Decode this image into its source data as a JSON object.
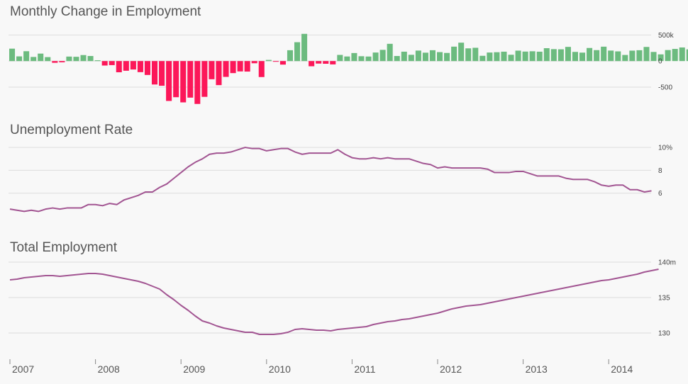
{
  "chart_data": [
    {
      "type": "bar",
      "title": "Monthly Change in Employment",
      "x_start": "2007-01",
      "y_ticks": [
        500,
        0,
        -500
      ],
      "y_tick_labels": [
        "500k",
        "0",
        "-500"
      ],
      "ylim": [
        -800,
        560
      ],
      "positive_color": "#6cbb7f",
      "negative_color": "#fc1759",
      "values": [
        238,
        90,
        189,
        79,
        143,
        76,
        -33,
        -24,
        86,
        82,
        115,
        97,
        15,
        -86,
        -78,
        -215,
        -186,
        -162,
        -213,
        -267,
        -450,
        -474,
        -766,
        -694,
        -793,
        -702,
        -823,
        -687,
        -349,
        -462,
        -304,
        -231,
        -199,
        -202,
        -42,
        -307,
        22,
        -1,
        -68,
        208,
        362,
        522,
        -100,
        -48,
        -52,
        -64,
        118,
        88,
        154,
        93,
        87,
        164,
        215,
        331,
        97,
        180,
        120,
        201,
        161,
        208,
        172,
        156,
        277,
        353,
        244,
        255,
        101,
        164,
        170,
        180,
        121,
        200,
        182,
        188,
        180,
        247,
        229,
        226,
        272,
        176,
        162,
        251,
        210,
        276,
        201,
        186,
        117,
        200,
        208,
        271,
        175,
        128,
        211,
        233,
        261,
        225,
        177,
        198,
        277,
        226,
        220,
        302,
        304,
        217
      ]
    },
    {
      "type": "line",
      "title": "Unemployment Rate",
      "x_start": "2007-01",
      "y_ticks": [
        10,
        8,
        6
      ],
      "y_tick_labels": [
        "10%",
        "8",
        "6"
      ],
      "ylim": [
        4.3,
        10.5
      ],
      "color": "#a25592",
      "values": [
        4.6,
        4.5,
        4.4,
        4.5,
        4.4,
        4.6,
        4.7,
        4.6,
        4.7,
        4.7,
        4.7,
        5.0,
        5.0,
        4.9,
        5.1,
        5.0,
        5.4,
        5.6,
        5.8,
        6.1,
        6.1,
        6.5,
        6.8,
        7.3,
        7.8,
        8.3,
        8.7,
        9.0,
        9.4,
        9.5,
        9.5,
        9.6,
        9.8,
        10.0,
        9.9,
        9.9,
        9.7,
        9.8,
        9.9,
        9.9,
        9.6,
        9.4,
        9.5,
        9.5,
        9.5,
        9.5,
        9.8,
        9.4,
        9.1,
        9.0,
        9.0,
        9.1,
        9.0,
        9.1,
        9.0,
        9.0,
        9.0,
        8.8,
        8.6,
        8.5,
        8.2,
        8.3,
        8.2,
        8.2,
        8.2,
        8.2,
        8.2,
        8.1,
        7.8,
        7.8,
        7.8,
        7.9,
        7.9,
        7.7,
        7.5,
        7.5,
        7.5,
        7.5,
        7.3,
        7.2,
        7.2,
        7.2,
        7.0,
        6.7,
        6.6,
        6.7,
        6.7,
        6.3,
        6.3,
        6.1,
        6.2
      ]
    },
    {
      "type": "line",
      "title": "Total Employment",
      "x_start": "2007-01",
      "x_tick_labels": [
        "2007",
        "2008",
        "2009",
        "2010",
        "2011",
        "2012",
        "2013",
        "2014"
      ],
      "y_ticks": [
        140,
        135,
        130
      ],
      "y_tick_labels": [
        "140m",
        "135",
        "130"
      ],
      "ylim": [
        129,
        140
      ],
      "color": "#a25592",
      "values": [
        137.5,
        137.6,
        137.8,
        137.9,
        138.0,
        138.1,
        138.1,
        138.0,
        138.1,
        138.2,
        138.3,
        138.4,
        138.4,
        138.3,
        138.1,
        137.9,
        137.7,
        137.5,
        137.3,
        137.0,
        136.6,
        136.2,
        135.4,
        134.7,
        133.9,
        133.2,
        132.4,
        131.7,
        131.4,
        131.0,
        130.7,
        130.5,
        130.3,
        130.1,
        130.1,
        129.8,
        129.8,
        129.8,
        129.9,
        130.1,
        130.5,
        130.6,
        130.5,
        130.4,
        130.4,
        130.3,
        130.5,
        130.6,
        130.7,
        130.8,
        130.9,
        131.2,
        131.4,
        131.6,
        131.7,
        131.9,
        132.0,
        132.2,
        132.4,
        132.6,
        132.8,
        133.1,
        133.4,
        133.6,
        133.8,
        133.9,
        134.0,
        134.2,
        134.4,
        134.6,
        134.8,
        135.0,
        135.2,
        135.4,
        135.6,
        135.8,
        136.0,
        136.2,
        136.4,
        136.6,
        136.8,
        137.0,
        137.2,
        137.4,
        137.5,
        137.7,
        137.9,
        138.1,
        138.3,
        138.6,
        138.8,
        139.0
      ]
    }
  ]
}
